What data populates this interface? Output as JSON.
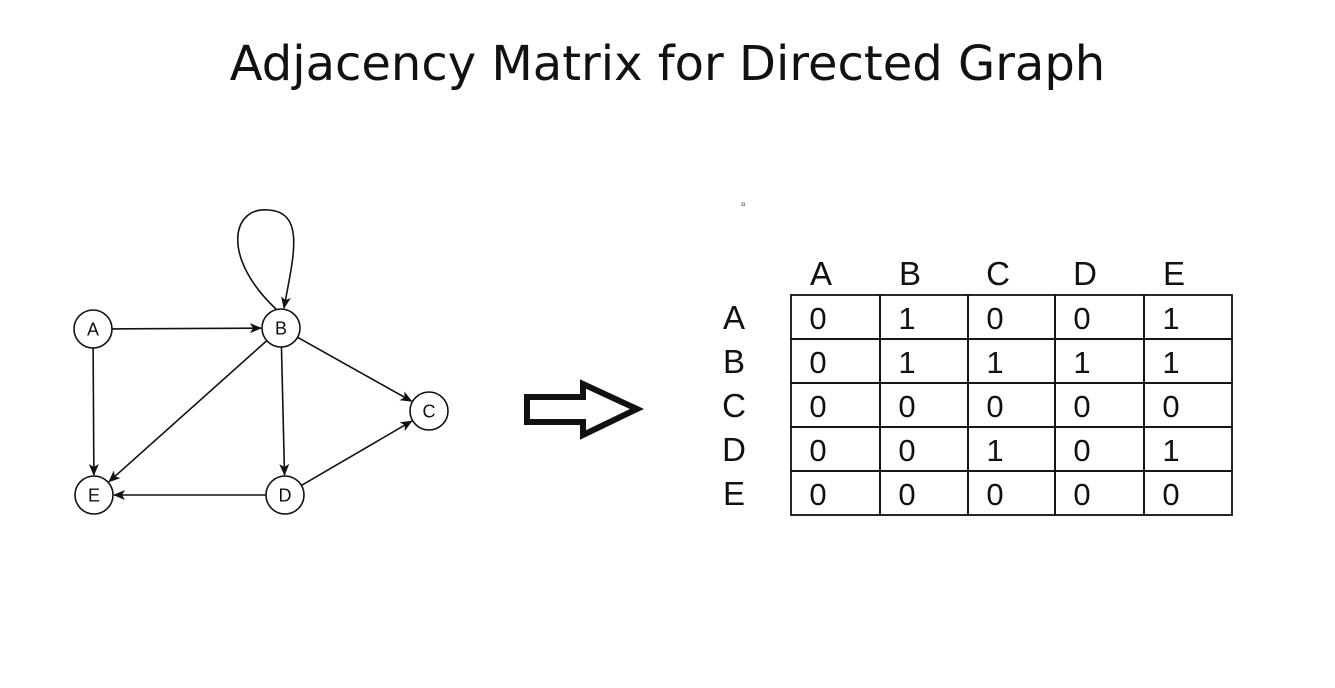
{
  "title": "Adjacency Matrix for Directed Graph",
  "graph": {
    "nodes": [
      {
        "id": "A",
        "label": "A"
      },
      {
        "id": "B",
        "label": "B"
      },
      {
        "id": "C",
        "label": "C"
      },
      {
        "id": "D",
        "label": "D"
      },
      {
        "id": "E",
        "label": "E"
      }
    ],
    "edges": [
      {
        "from": "A",
        "to": "B"
      },
      {
        "from": "A",
        "to": "E"
      },
      {
        "from": "B",
        "to": "B"
      },
      {
        "from": "B",
        "to": "C"
      },
      {
        "from": "B",
        "to": "D"
      },
      {
        "from": "B",
        "to": "E"
      },
      {
        "from": "D",
        "to": "C"
      },
      {
        "from": "D",
        "to": "E"
      }
    ]
  },
  "matrix": {
    "column_headers": [
      "A",
      "B",
      "C",
      "D",
      "E"
    ],
    "row_headers": [
      "A",
      "B",
      "C",
      "D",
      "E"
    ],
    "rows": [
      [
        "0",
        "1",
        "0",
        "0",
        "1"
      ],
      [
        "0",
        "1",
        "1",
        "1",
        "1"
      ],
      [
        "0",
        "0",
        "0",
        "0",
        "0"
      ],
      [
        "0",
        "0",
        "1",
        "0",
        "1"
      ],
      [
        "0",
        "0",
        "0",
        "0",
        "0"
      ]
    ]
  },
  "colors": {
    "ink": "#111111",
    "node_fill": "#ffffff",
    "background": "#ffffff"
  }
}
